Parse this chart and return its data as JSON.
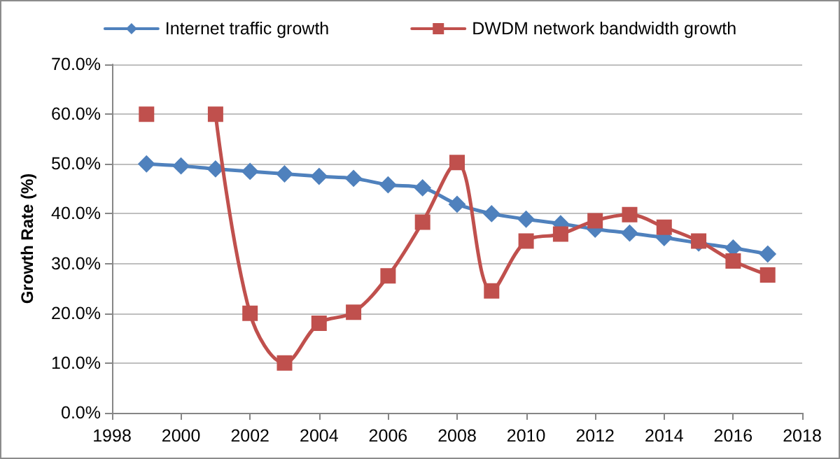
{
  "chart_data": {
    "type": "line",
    "ylabel": "Growth Rate (%)",
    "x": [
      1999,
      2000,
      2001,
      2002,
      2003,
      2004,
      2005,
      2006,
      2007,
      2008,
      2009,
      2010,
      2011,
      2012,
      2013,
      2014,
      2015,
      2016,
      2017
    ],
    "series": [
      {
        "name": "Internet traffic growth",
        "color": "#4f81bd",
        "marker": "diamond",
        "values": [
          50.0,
          49.6,
          49.0,
          48.5,
          48.0,
          47.5,
          47.1,
          45.8,
          45.2,
          41.9,
          40.0,
          38.9,
          38.0,
          36.9,
          36.1,
          35.2,
          34.1,
          33.1,
          31.9
        ]
      },
      {
        "name": "DWDM network bandwidth growth",
        "color": "#c0504d",
        "marker": "square",
        "values": [
          60.0,
          null,
          60.0,
          20.0,
          10.0,
          18.0,
          20.2,
          27.5,
          38.3,
          50.3,
          24.5,
          34.5,
          35.9,
          38.6,
          39.8,
          37.3,
          34.5,
          30.5,
          27.7
        ]
      }
    ],
    "xlim": [
      1998,
      2018
    ],
    "xticks": [
      1998,
      2000,
      2002,
      2004,
      2006,
      2008,
      2010,
      2012,
      2014,
      2016,
      2018
    ],
    "ylim": [
      0,
      70
    ],
    "yticks": [
      {
        "value": 0,
        "label": "0.0%"
      },
      {
        "value": 10,
        "label": "10.0%"
      },
      {
        "value": 20,
        "label": "20.0%"
      },
      {
        "value": 30,
        "label": "30.0%"
      },
      {
        "value": 40,
        "label": "40.0%"
      },
      {
        "value": 50,
        "label": "50.0%"
      },
      {
        "value": 60,
        "label": "60.0%"
      },
      {
        "value": 70,
        "label": "70.0%"
      }
    ],
    "grid": "y",
    "legend": "top",
    "line_style": "solid"
  }
}
